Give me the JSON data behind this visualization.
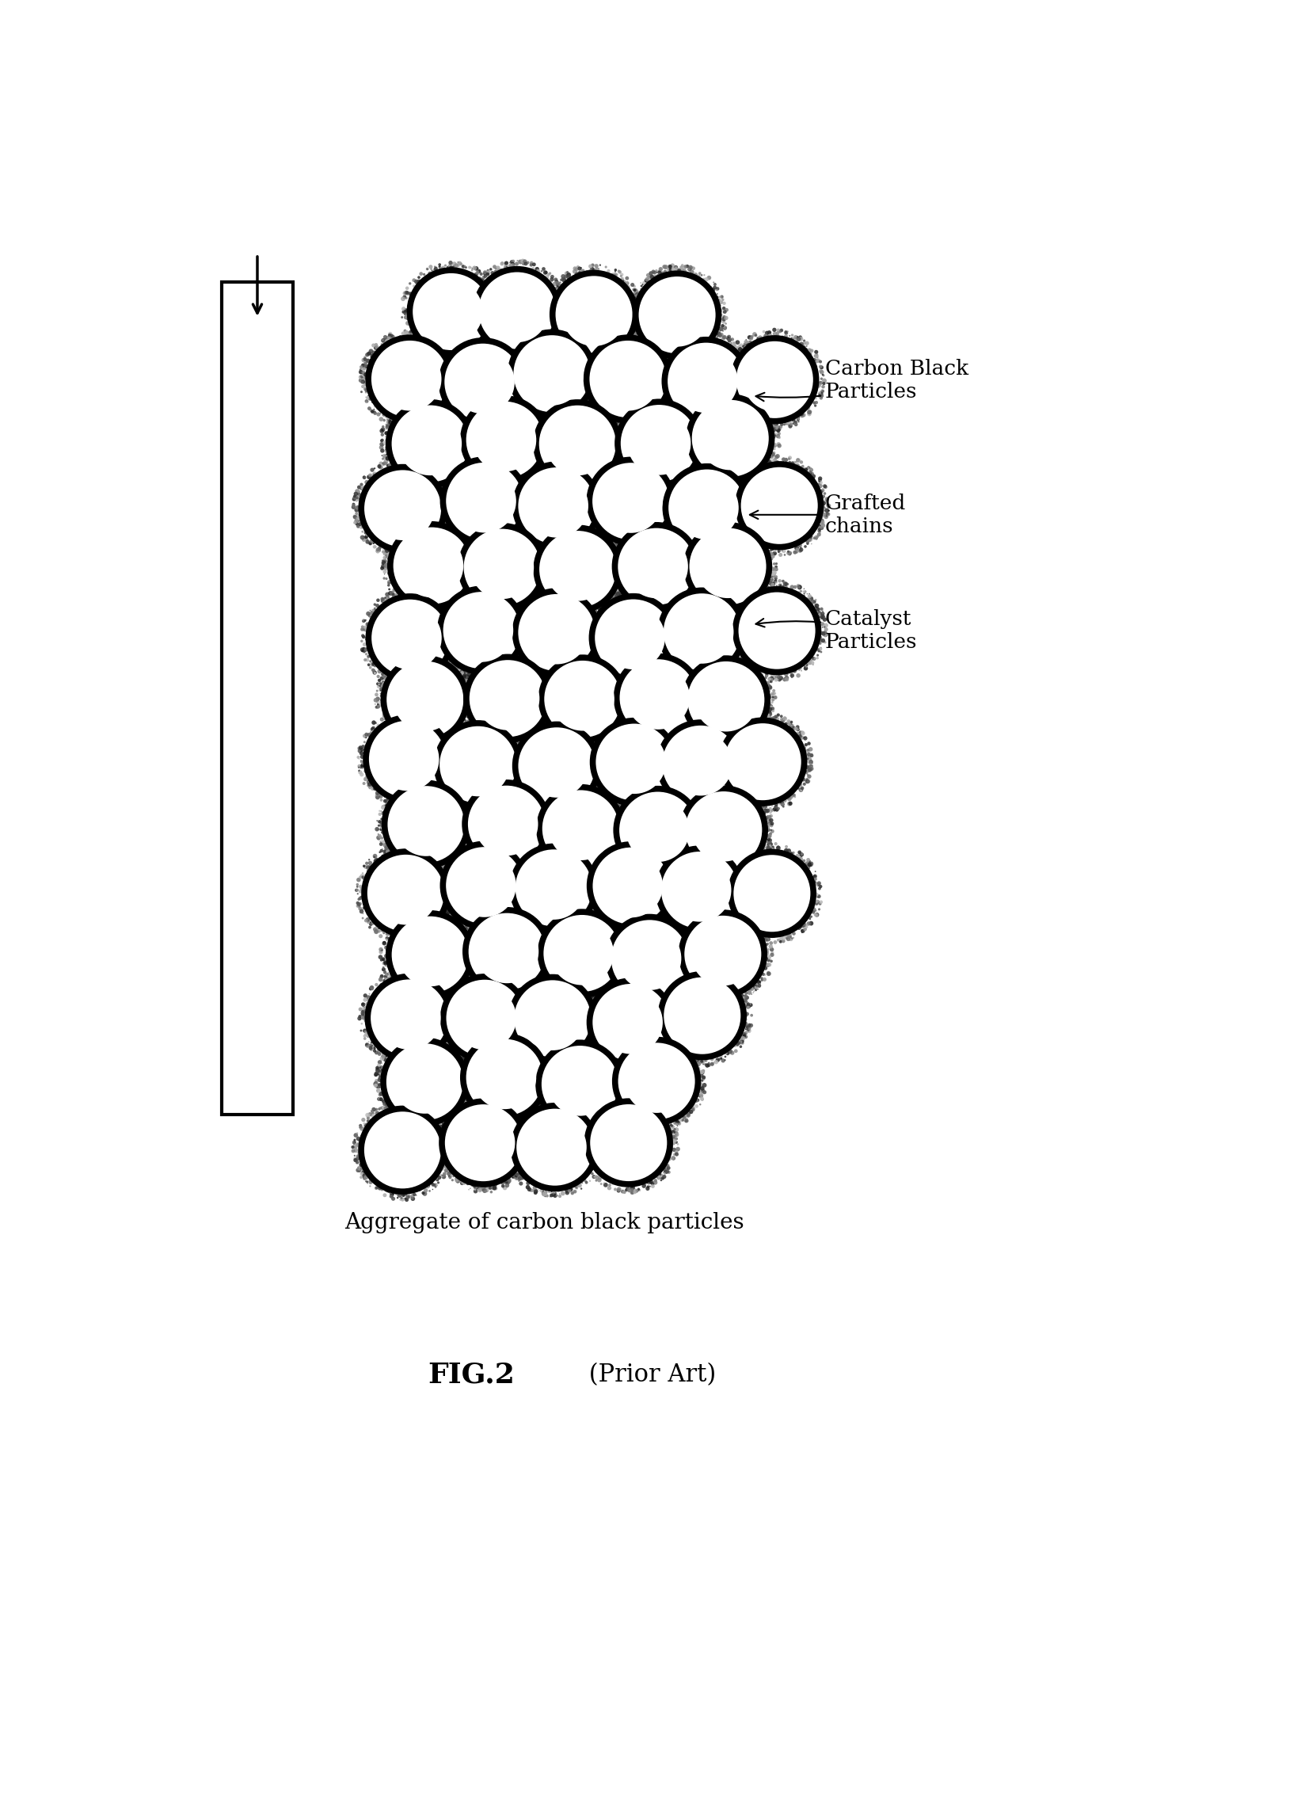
{
  "title": "FIG.2",
  "title_suffix": " (Prior Art)",
  "subtitle": "Aggregate of carbon black particles",
  "fig_width": 16.49,
  "fig_height": 22.71,
  "background_color": "#ffffff",
  "label_carbon_black": "Carbon Black\nParticles",
  "label_grafted": "Grafted\nchains",
  "label_catalyst": "Catalyst\nParticles"
}
